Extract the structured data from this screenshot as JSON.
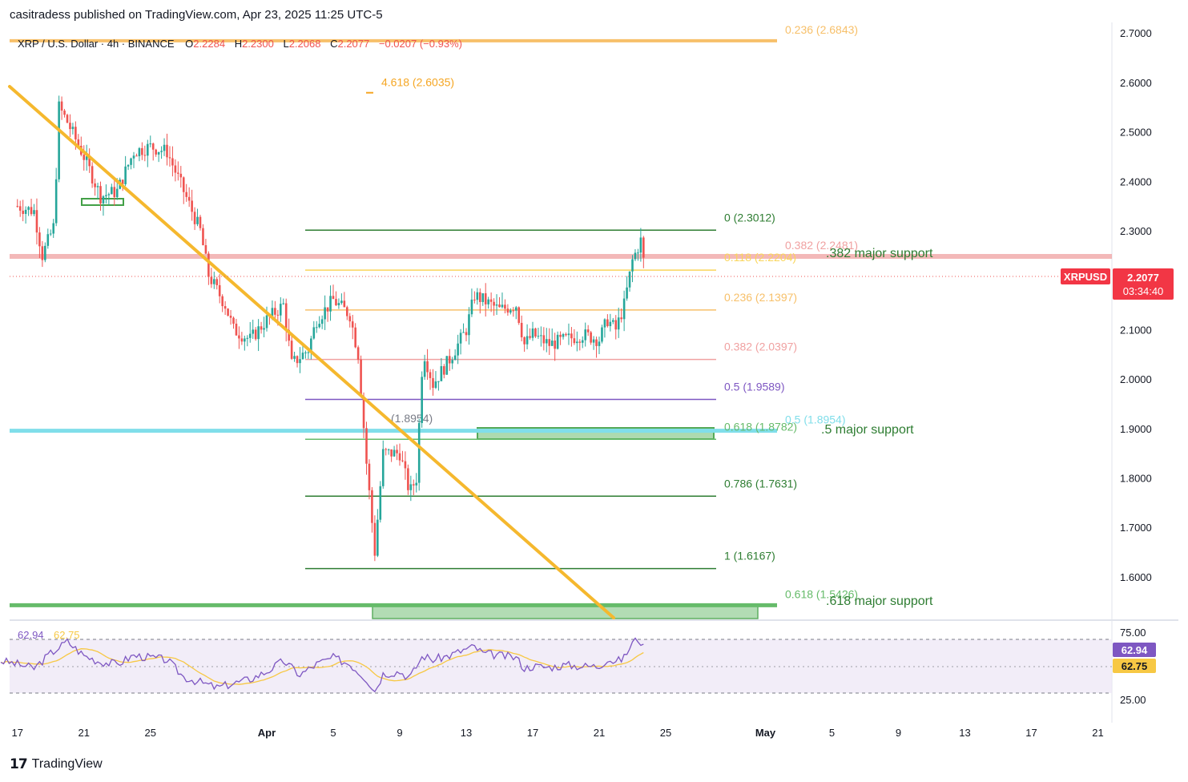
{
  "caption": "casitradess published on TradingView.com, Apr 23, 2025 11:25 UTC-5",
  "legend": {
    "symbol_text": "XRP / U.S. Dollar · 4h · BINANCE",
    "o_label": "O",
    "o_value": "2.2284",
    "h_label": "H",
    "h_value": "2.2300",
    "l_label": "L",
    "l_value": "2.2068",
    "c_label": "C",
    "c_value": "2.2077",
    "change": "−0.0207 (−0.93%)"
  },
  "price_tag": {
    "symbol": "XRPUSD",
    "price": "2.2077",
    "countdown": "03:34:40"
  },
  "rsi_tags": {
    "rsi": "62.94",
    "ma": "62.75"
  },
  "rsi_legend": {
    "rsi": "62.94",
    "ma": "62.75"
  },
  "footer": {
    "logo_mark": "𝟭𝟳",
    "brand": "TradingView"
  },
  "colors": {
    "up": "#26a69a",
    "down": "#ef5350",
    "trendline": "#f5b82e",
    "fib_green": "#2e7d32",
    "fib_yellow": "#f9d55a",
    "fib_orange": "#f7c06a",
    "fib_pink": "#f0a1a1",
    "fib_purple": "#7e57c2",
    "cyan": "#80deea",
    "support_green": "#66bb6a",
    "rsi_line": "#7e57c2",
    "rsi_ma": "#f7c844"
  },
  "chart_data": {
    "type": "candlestick",
    "interval": "4h",
    "y_axis": {
      "range": [
        1.53,
        2.725
      ],
      "ticks": [
        "2.7000",
        "2.6000",
        "2.5000",
        "2.4000",
        "2.3000",
        "2.2000",
        "2.1000",
        "2.0000",
        "1.9000",
        "1.8000",
        "1.7000",
        "1.6000"
      ],
      "tick_values": [
        2.7,
        2.6,
        2.5,
        2.4,
        2.3,
        2.2,
        2.1,
        2.0,
        1.9,
        1.8,
        1.7,
        1.6
      ]
    },
    "x_axis": {
      "ticks": [
        "17",
        "21",
        "25",
        "Apr",
        "5",
        "9",
        "13",
        "17",
        "21",
        "25",
        "May",
        "5",
        "9",
        "13",
        "17",
        "21"
      ],
      "tick_days": [
        -15,
        -11,
        -7,
        0,
        4,
        8,
        12,
        16,
        20,
        24,
        30,
        34,
        38,
        42,
        46,
        50
      ]
    },
    "price_path": [
      {
        "d": -15.0,
        "p": 2.35
      },
      {
        "d": -14.0,
        "p": 2.34
      },
      {
        "d": -13.5,
        "p": 2.25
      },
      {
        "d": -12.8,
        "p": 2.31
      },
      {
        "d": -12.5,
        "p": 2.55
      },
      {
        "d": -12.0,
        "p": 2.52
      },
      {
        "d": -11.0,
        "p": 2.45
      },
      {
        "d": -10.0,
        "p": 2.37
      },
      {
        "d": -9.0,
        "p": 2.38
      },
      {
        "d": -8.0,
        "p": 2.46
      },
      {
        "d": -7.0,
        "p": 2.47
      },
      {
        "d": -6.0,
        "p": 2.46
      },
      {
        "d": -5.0,
        "p": 2.38
      },
      {
        "d": -4.0,
        "p": 2.3
      },
      {
        "d": -3.5,
        "p": 2.21
      },
      {
        "d": -2.5,
        "p": 2.15
      },
      {
        "d": -2.0,
        "p": 2.1
      },
      {
        "d": -1.0,
        "p": 2.08
      },
      {
        "d": 0.0,
        "p": 2.12
      },
      {
        "d": 1.0,
        "p": 2.15
      },
      {
        "d": 1.5,
        "p": 2.03
      },
      {
        "d": 2.5,
        "p": 2.06
      },
      {
        "d": 3.0,
        "p": 2.12
      },
      {
        "d": 4.0,
        "p": 2.16
      },
      {
        "d": 5.0,
        "p": 2.13
      },
      {
        "d": 5.5,
        "p": 2.05
      },
      {
        "d": 6.0,
        "p": 1.83
      },
      {
        "d": 6.5,
        "p": 1.65
      },
      {
        "d": 7.0,
        "p": 1.85
      },
      {
        "d": 8.0,
        "p": 1.85
      },
      {
        "d": 8.6,
        "p": 1.77
      },
      {
        "d": 9.0,
        "p": 1.8
      },
      {
        "d": 9.4,
        "p": 2.06
      },
      {
        "d": 10.0,
        "p": 1.99
      },
      {
        "d": 11.0,
        "p": 2.04
      },
      {
        "d": 12.0,
        "p": 2.1
      },
      {
        "d": 12.5,
        "p": 2.17
      },
      {
        "d": 13.0,
        "p": 2.16
      },
      {
        "d": 14.0,
        "p": 2.14
      },
      {
        "d": 15.0,
        "p": 2.15
      },
      {
        "d": 15.5,
        "p": 2.07
      },
      {
        "d": 16.0,
        "p": 2.09
      },
      {
        "d": 17.0,
        "p": 2.07
      },
      {
        "d": 18.0,
        "p": 2.08
      },
      {
        "d": 19.0,
        "p": 2.09
      },
      {
        "d": 20.0,
        "p": 2.08
      },
      {
        "d": 20.5,
        "p": 2.12
      },
      {
        "d": 21.0,
        "p": 2.1
      },
      {
        "d": 21.5,
        "p": 2.15
      },
      {
        "d": 22.0,
        "p": 2.24
      },
      {
        "d": 22.5,
        "p": 2.28
      },
      {
        "d": 22.8,
        "p": 2.2077
      }
    ],
    "trendline": [
      {
        "d": -17.0,
        "p": 2.59
      },
      {
        "d": 20.5,
        "p": 1.53
      }
    ],
    "fib_retracement": [
      {
        "label": "0 (2.3012)",
        "value": 2.3012,
        "color": "#2e7d32"
      },
      {
        "label": "0.118 (2.2204)",
        "value": 2.2204,
        "color": "#f9d55a"
      },
      {
        "label": "0.236 (2.1397)",
        "value": 2.1397,
        "color": "#f7c06a"
      },
      {
        "label": "0.382 (2.0397)",
        "value": 2.0397,
        "color": "#f0a1a1"
      },
      {
        "label": "0.5 (1.9589)",
        "value": 1.9589,
        "color": "#7e57c2"
      },
      {
        "label": "0.618 (1.8782)",
        "value": 1.8782,
        "color": "#66bb6a"
      },
      {
        "label": "0.786 (1.7631)",
        "value": 1.7631,
        "color": "#2e7d32"
      },
      {
        "label": "1 (1.6167)",
        "value": 1.6167,
        "color": "#2e7d32"
      }
    ],
    "long_levels": [
      {
        "label": "0.236 (2.6843)",
        "value": 2.6843,
        "color": "#f7c06a"
      },
      {
        "label": "0.382 (2.2481)",
        "value": 2.2481,
        "color": "#f0a1a1"
      },
      {
        "label": "0.5 (1.8954)",
        "value": 1.8954,
        "color": "#80deea"
      },
      {
        "label": "0.618 (1.5426)",
        "value": 1.5426,
        "color": "#66bb6a"
      }
    ],
    "extension": {
      "label": "4.618 (2.6035)",
      "value": 2.6035
    },
    "pivot_label": "(1.8954)",
    "annotations": [
      ".382 major support",
      ".5 major support",
      ".618 major support"
    ],
    "rsi": {
      "levels": [
        "75.00",
        "25.00"
      ],
      "path": [
        {
          "d": -16,
          "v": 55
        },
        {
          "d": -15,
          "v": 52
        },
        {
          "d": -14,
          "v": 48
        },
        {
          "d": -13,
          "v": 62
        },
        {
          "d": -12,
          "v": 73
        },
        {
          "d": -11,
          "v": 60
        },
        {
          "d": -10,
          "v": 54
        },
        {
          "d": -9,
          "v": 52
        },
        {
          "d": -8,
          "v": 60
        },
        {
          "d": -7,
          "v": 58
        },
        {
          "d": -6,
          "v": 56
        },
        {
          "d": -5,
          "v": 40
        },
        {
          "d": -4,
          "v": 35
        },
        {
          "d": -3,
          "v": 30
        },
        {
          "d": -2,
          "v": 34
        },
        {
          "d": -1,
          "v": 38
        },
        {
          "d": 0,
          "v": 45
        },
        {
          "d": 1,
          "v": 55
        },
        {
          "d": 2,
          "v": 42
        },
        {
          "d": 3,
          "v": 52
        },
        {
          "d": 4,
          "v": 58
        },
        {
          "d": 5,
          "v": 52
        },
        {
          "d": 6,
          "v": 38
        },
        {
          "d": 6.5,
          "v": 27
        },
        {
          "d": 7,
          "v": 43
        },
        {
          "d": 8,
          "v": 45
        },
        {
          "d": 8.6,
          "v": 39
        },
        {
          "d": 9.4,
          "v": 60
        },
        {
          "d": 10,
          "v": 56
        },
        {
          "d": 11,
          "v": 60
        },
        {
          "d": 12,
          "v": 66
        },
        {
          "d": 12.5,
          "v": 68
        },
        {
          "d": 13,
          "v": 62
        },
        {
          "d": 14,
          "v": 60
        },
        {
          "d": 15,
          "v": 58
        },
        {
          "d": 15.5,
          "v": 48
        },
        {
          "d": 16,
          "v": 50
        },
        {
          "d": 17,
          "v": 49
        },
        {
          "d": 18,
          "v": 51
        },
        {
          "d": 19,
          "v": 50
        },
        {
          "d": 20,
          "v": 50
        },
        {
          "d": 20.5,
          "v": 57
        },
        {
          "d": 21,
          "v": 54
        },
        {
          "d": 21.5,
          "v": 58
        },
        {
          "d": 22,
          "v": 72
        },
        {
          "d": 22.4,
          "v": 76
        },
        {
          "d": 22.8,
          "v": 62.94
        }
      ]
    }
  }
}
